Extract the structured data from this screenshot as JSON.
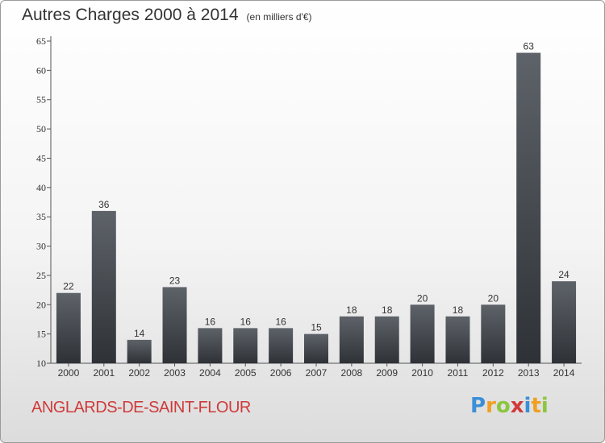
{
  "header": {
    "title": "Autres Charges 2000 à 2014",
    "subtitle": "(en milliers d'€)"
  },
  "footer": {
    "commune": "ANGLARDS-DE-SAINT-FLOUR",
    "logo_letters": [
      "P",
      "r",
      "o",
      "x",
      "i",
      "t",
      "i"
    ],
    "logo_colors": [
      "#3b8fd6",
      "#f0a020",
      "#8cc63f",
      "#d03a3a",
      "#3b8fd6",
      "#f0a020",
      "#8cc63f"
    ]
  },
  "chart_data": {
    "type": "bar",
    "title": "Autres Charges 2000 à 2014",
    "subtitle": "(en milliers d'€)",
    "categories": [
      "2000",
      "2001",
      "2002",
      "2003",
      "2004",
      "2005",
      "2006",
      "2007",
      "2008",
      "2009",
      "2010",
      "2011",
      "2012",
      "2013",
      "2014"
    ],
    "values": [
      22,
      36,
      14,
      23,
      16,
      16,
      16,
      15,
      18,
      18,
      20,
      18,
      20,
      63,
      24
    ],
    "ylim": [
      10,
      65
    ],
    "yticks": [
      10,
      15,
      20,
      25,
      30,
      35,
      40,
      45,
      50,
      55,
      60,
      65
    ],
    "grid": false,
    "bar_color_top": "#5e6369",
    "bar_color_bottom": "#2e3237"
  }
}
